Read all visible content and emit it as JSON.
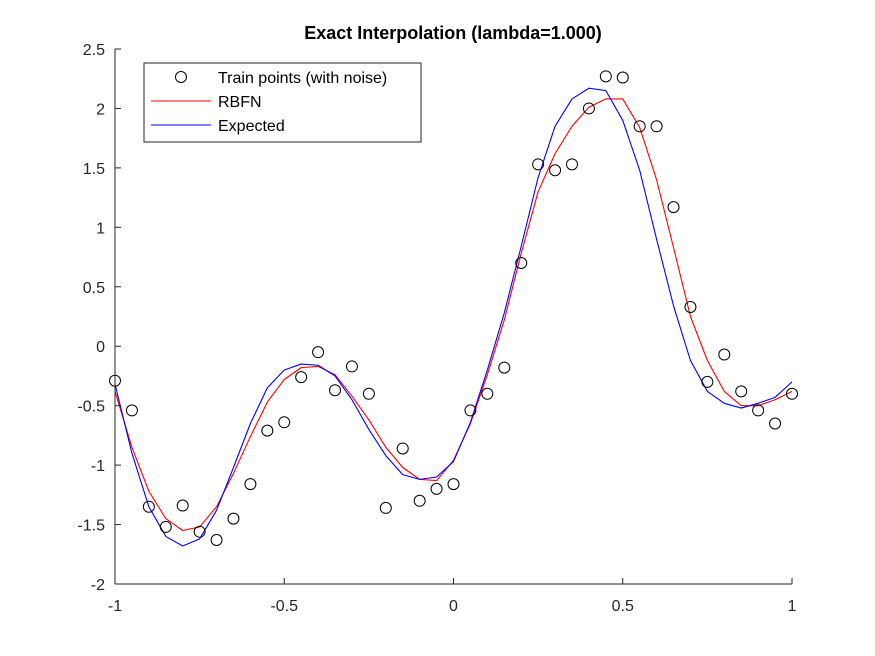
{
  "chart_data": {
    "type": "line",
    "title": "Exact Interpolation (lambda=1.000)",
    "xlabel": "",
    "ylabel": "",
    "xlim": [
      -1,
      1
    ],
    "ylim": [
      -2,
      2.5
    ],
    "xticks": [
      -1,
      -0.5,
      0,
      0.5,
      1
    ],
    "xtick_labels": [
      "-1",
      "-0.5",
      "0",
      "0.5",
      "1"
    ],
    "yticks": [
      -2,
      -1.5,
      -1,
      -0.5,
      0,
      0.5,
      1,
      1.5,
      2,
      2.5
    ],
    "ytick_labels": [
      "-2",
      "-1.5",
      "-1",
      "-0.5",
      "0",
      "0.5",
      "1",
      "1.5",
      "2",
      "2.5"
    ],
    "grid": false,
    "legend_position": "top-left",
    "series": [
      {
        "name": "Train points (with noise)",
        "kind": "scatter",
        "marker": "open-circle",
        "color": "#000000",
        "x": [
          -1.0,
          -0.95,
          -0.9,
          -0.85,
          -0.8,
          -0.75,
          -0.7,
          -0.65,
          -0.6,
          -0.55,
          -0.5,
          -0.45,
          -0.4,
          -0.35,
          -0.3,
          -0.25,
          -0.2,
          -0.15,
          -0.1,
          -0.05,
          0.0,
          0.05,
          0.1,
          0.15,
          0.2,
          0.25,
          0.3,
          0.35,
          0.4,
          0.45,
          0.5,
          0.55,
          0.6,
          0.65,
          0.7,
          0.75,
          0.8,
          0.85,
          0.9,
          0.95,
          1.0
        ],
        "y": [
          -0.29,
          -0.54,
          -1.35,
          -1.52,
          -1.34,
          -1.56,
          -1.63,
          -1.45,
          -1.16,
          -0.71,
          -0.64,
          -0.26,
          -0.05,
          -0.37,
          -0.17,
          -0.4,
          -1.36,
          -0.86,
          -1.3,
          -1.2,
          -1.16,
          -0.54,
          -0.4,
          -0.18,
          0.7,
          1.53,
          1.48,
          1.53,
          2.0,
          2.27,
          2.26,
          1.85,
          1.85,
          1.17,
          0.33,
          -0.3,
          -0.07,
          -0.38,
          -0.54,
          -0.65,
          -0.4
        ]
      },
      {
        "name": "RBFN",
        "kind": "line",
        "color": "#ff0000",
        "x": [
          -1.0,
          -0.95,
          -0.9,
          -0.85,
          -0.8,
          -0.75,
          -0.7,
          -0.65,
          -0.6,
          -0.55,
          -0.5,
          -0.45,
          -0.4,
          -0.35,
          -0.3,
          -0.25,
          -0.2,
          -0.15,
          -0.1,
          -0.05,
          0.0,
          0.05,
          0.1,
          0.15,
          0.2,
          0.25,
          0.3,
          0.35,
          0.4,
          0.45,
          0.5,
          0.55,
          0.6,
          0.65,
          0.7,
          0.75,
          0.8,
          0.85,
          0.9,
          0.95,
          1.0
        ],
        "y": [
          -0.38,
          -0.85,
          -1.22,
          -1.45,
          -1.55,
          -1.52,
          -1.35,
          -1.07,
          -0.76,
          -0.47,
          -0.28,
          -0.18,
          -0.17,
          -0.24,
          -0.42,
          -0.62,
          -0.85,
          -1.02,
          -1.12,
          -1.13,
          -0.96,
          -0.65,
          -0.24,
          0.22,
          0.78,
          1.3,
          1.62,
          1.85,
          2.01,
          2.08,
          2.08,
          1.84,
          1.4,
          0.83,
          0.25,
          -0.12,
          -0.38,
          -0.5,
          -0.5,
          -0.45,
          -0.38
        ]
      },
      {
        "name": "Expected",
        "kind": "line",
        "color": "#0000ff",
        "x": [
          -1.0,
          -0.95,
          -0.9,
          -0.85,
          -0.8,
          -0.75,
          -0.7,
          -0.65,
          -0.6,
          -0.55,
          -0.5,
          -0.45,
          -0.4,
          -0.35,
          -0.3,
          -0.25,
          -0.2,
          -0.15,
          -0.1,
          -0.05,
          0.0,
          0.05,
          0.1,
          0.15,
          0.2,
          0.25,
          0.3,
          0.35,
          0.4,
          0.45,
          0.5,
          0.55,
          0.6,
          0.65,
          0.7,
          0.75,
          0.8,
          0.85,
          0.9,
          0.95,
          1.0
        ],
        "y": [
          -0.32,
          -0.9,
          -1.35,
          -1.6,
          -1.68,
          -1.62,
          -1.38,
          -1.02,
          -0.65,
          -0.35,
          -0.2,
          -0.15,
          -0.16,
          -0.25,
          -0.45,
          -0.7,
          -0.92,
          -1.08,
          -1.12,
          -1.1,
          -0.97,
          -0.64,
          -0.2,
          0.28,
          0.84,
          1.42,
          1.85,
          2.08,
          2.17,
          2.15,
          1.9,
          1.48,
          0.9,
          0.34,
          -0.12,
          -0.38,
          -0.48,
          -0.52,
          -0.48,
          -0.43,
          -0.3
        ]
      }
    ]
  }
}
